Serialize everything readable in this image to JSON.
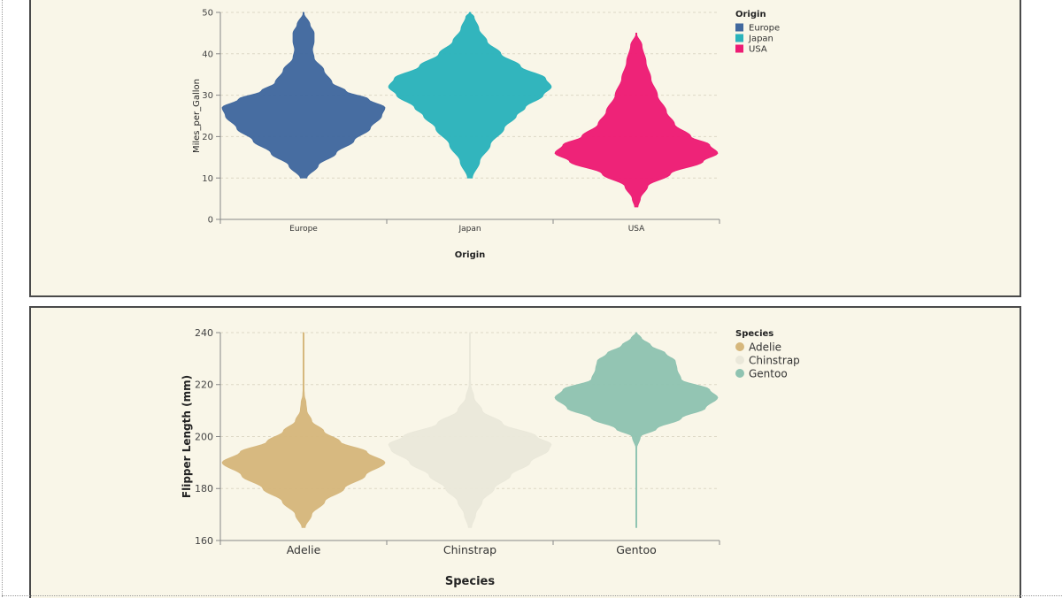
{
  "chart_data": [
    {
      "type": "violin",
      "xlabel": "Origin",
      "ylabel": "Miles_per_Gallon",
      "ylim": [
        0,
        50
      ],
      "yticks": [
        0,
        10,
        20,
        30,
        40,
        50
      ],
      "categories": [
        "Europe",
        "Japan",
        "USA"
      ],
      "legend": {
        "title": "Origin",
        "placement": "top-right",
        "entries": [
          "Europe",
          "Japan",
          "USA"
        ],
        "symbol": "square"
      },
      "series": [
        {
          "name": "Europe",
          "color": "#41689e",
          "range": [
            10,
            50
          ],
          "density": [
            [
              10,
              0.04
            ],
            [
              13,
              0.18
            ],
            [
              16,
              0.4
            ],
            [
              19,
              0.62
            ],
            [
              22,
              0.82
            ],
            [
              25,
              0.96
            ],
            [
              27,
              1.0
            ],
            [
              29,
              0.8
            ],
            [
              31,
              0.52
            ],
            [
              33,
              0.35
            ],
            [
              36,
              0.25
            ],
            [
              39,
              0.13
            ],
            [
              41,
              0.11
            ],
            [
              43,
              0.13
            ],
            [
              45,
              0.13
            ],
            [
              47,
              0.08
            ],
            [
              50,
              0.0
            ]
          ]
        },
        {
          "name": "Japan",
          "color": "#2bb3bb",
          "range": [
            10,
            50
          ],
          "density": [
            [
              10,
              0.03
            ],
            [
              14,
              0.12
            ],
            [
              18,
              0.25
            ],
            [
              22,
              0.42
            ],
            [
              25,
              0.57
            ],
            [
              27,
              0.68
            ],
            [
              30,
              0.9
            ],
            [
              32,
              1.0
            ],
            [
              34,
              0.93
            ],
            [
              37,
              0.62
            ],
            [
              40,
              0.38
            ],
            [
              43,
              0.21
            ],
            [
              46,
              0.11
            ],
            [
              49,
              0.05
            ],
            [
              50,
              0.0
            ]
          ]
        },
        {
          "name": "USA",
          "color": "#ed1c74",
          "range": [
            3,
            45
          ],
          "density": [
            [
              3,
              0.02
            ],
            [
              5,
              0.05
            ],
            [
              8,
              0.14
            ],
            [
              11,
              0.42
            ],
            [
              14,
              0.82
            ],
            [
              16,
              1.0
            ],
            [
              18,
              0.9
            ],
            [
              20,
              0.67
            ],
            [
              23,
              0.47
            ],
            [
              26,
              0.37
            ],
            [
              30,
              0.26
            ],
            [
              34,
              0.18
            ],
            [
              38,
              0.12
            ],
            [
              42,
              0.07
            ],
            [
              45,
              0.0
            ]
          ]
        }
      ]
    },
    {
      "type": "violin",
      "xlabel": "Species",
      "ylabel": "Flipper Length (mm)",
      "ylim": [
        160,
        240
      ],
      "yticks": [
        160,
        180,
        200,
        220,
        240
      ],
      "categories": [
        "Adelie",
        "Chinstrap",
        "Gentoo"
      ],
      "legend": {
        "title": "Species",
        "placement": "top-right",
        "entries": [
          "Adelie",
          "Chinstrap",
          "Gentoo"
        ],
        "symbol": "circle"
      },
      "series": [
        {
          "name": "Adelie",
          "color": "#d6b77c",
          "range": [
            165,
            240
          ],
          "density": [
            [
              165,
              0.02
            ],
            [
              170,
              0.1
            ],
            [
              175,
              0.26
            ],
            [
              180,
              0.5
            ],
            [
              185,
              0.76
            ],
            [
              190,
              1.0
            ],
            [
              194,
              0.78
            ],
            [
              198,
              0.45
            ],
            [
              202,
              0.25
            ],
            [
              206,
              0.1
            ],
            [
              210,
              0.04
            ],
            [
              213,
              0.03
            ],
            [
              216,
              0.01
            ],
            [
              220,
              0.0
            ],
            [
              240,
              0.0
            ]
          ]
        },
        {
          "name": "Chinstrap",
          "color": "#eae8da",
          "range": [
            165,
            240
          ],
          "density": [
            [
              165,
              0.02
            ],
            [
              170,
              0.07
            ],
            [
              175,
              0.15
            ],
            [
              180,
              0.3
            ],
            [
              185,
              0.5
            ],
            [
              190,
              0.74
            ],
            [
              195,
              0.97
            ],
            [
              197,
              1.0
            ],
            [
              200,
              0.82
            ],
            [
              205,
              0.4
            ],
            [
              210,
              0.15
            ],
            [
              215,
              0.05
            ],
            [
              220,
              0.01
            ],
            [
              225,
              0.0
            ],
            [
              240,
              0.0
            ]
          ]
        },
        {
          "name": "Gentoo",
          "color": "#8fc3b1",
          "range": [
            165,
            240
          ],
          "density": [
            [
              165,
              0.0
            ],
            [
              195,
              0.0
            ],
            [
              200,
              0.05
            ],
            [
              203,
              0.25
            ],
            [
              207,
              0.55
            ],
            [
              211,
              0.85
            ],
            [
              215,
              1.0
            ],
            [
              218,
              0.9
            ],
            [
              222,
              0.55
            ],
            [
              226,
              0.5
            ],
            [
              229,
              0.48
            ],
            [
              232,
              0.36
            ],
            [
              235,
              0.18
            ],
            [
              238,
              0.06
            ],
            [
              240,
              0.0
            ]
          ]
        }
      ]
    }
  ]
}
